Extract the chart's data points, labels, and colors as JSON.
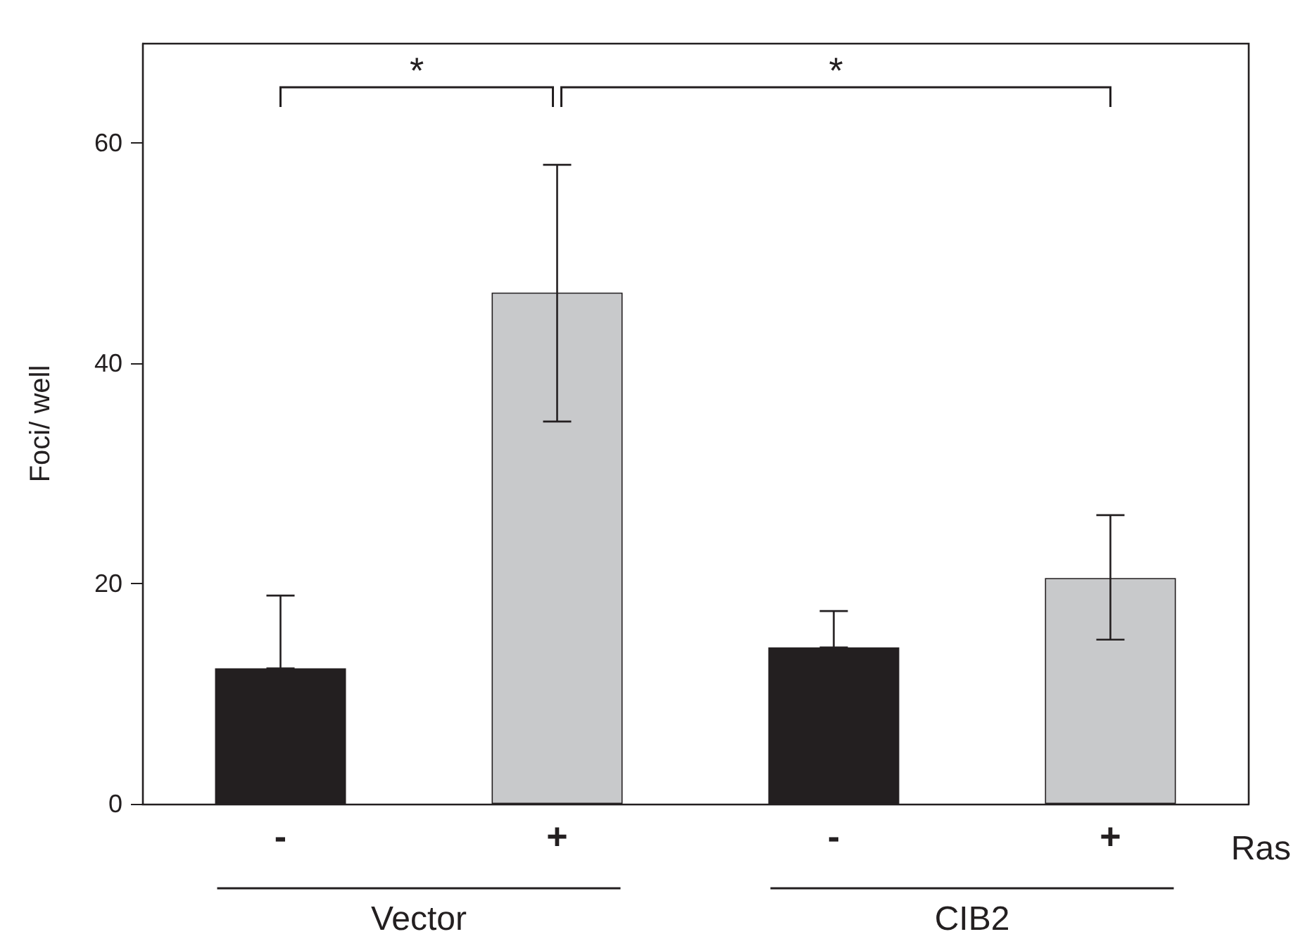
{
  "chart_data": {
    "type": "bar",
    "ylabel": "Foci/ well",
    "categories": [
      "-",
      "+",
      "-",
      "+"
    ],
    "values": [
      12.3,
      46.4,
      14.2,
      20.5
    ],
    "colors": [
      "#231f20",
      "#c8c9cb",
      "#231f20",
      "#c8c9cb"
    ],
    "errors": [
      [
        12.3,
        18.9
      ],
      [
        34.7,
        58.0
      ],
      [
        14.2,
        17.5
      ],
      [
        14.9,
        26.2
      ]
    ],
    "ylim": [
      0,
      69
    ],
    "yticks": [
      0,
      20,
      40,
      60
    ],
    "grid": false,
    "annotations": [
      "*",
      "*",
      "Vector",
      "CIB2",
      "Ras"
    ]
  }
}
